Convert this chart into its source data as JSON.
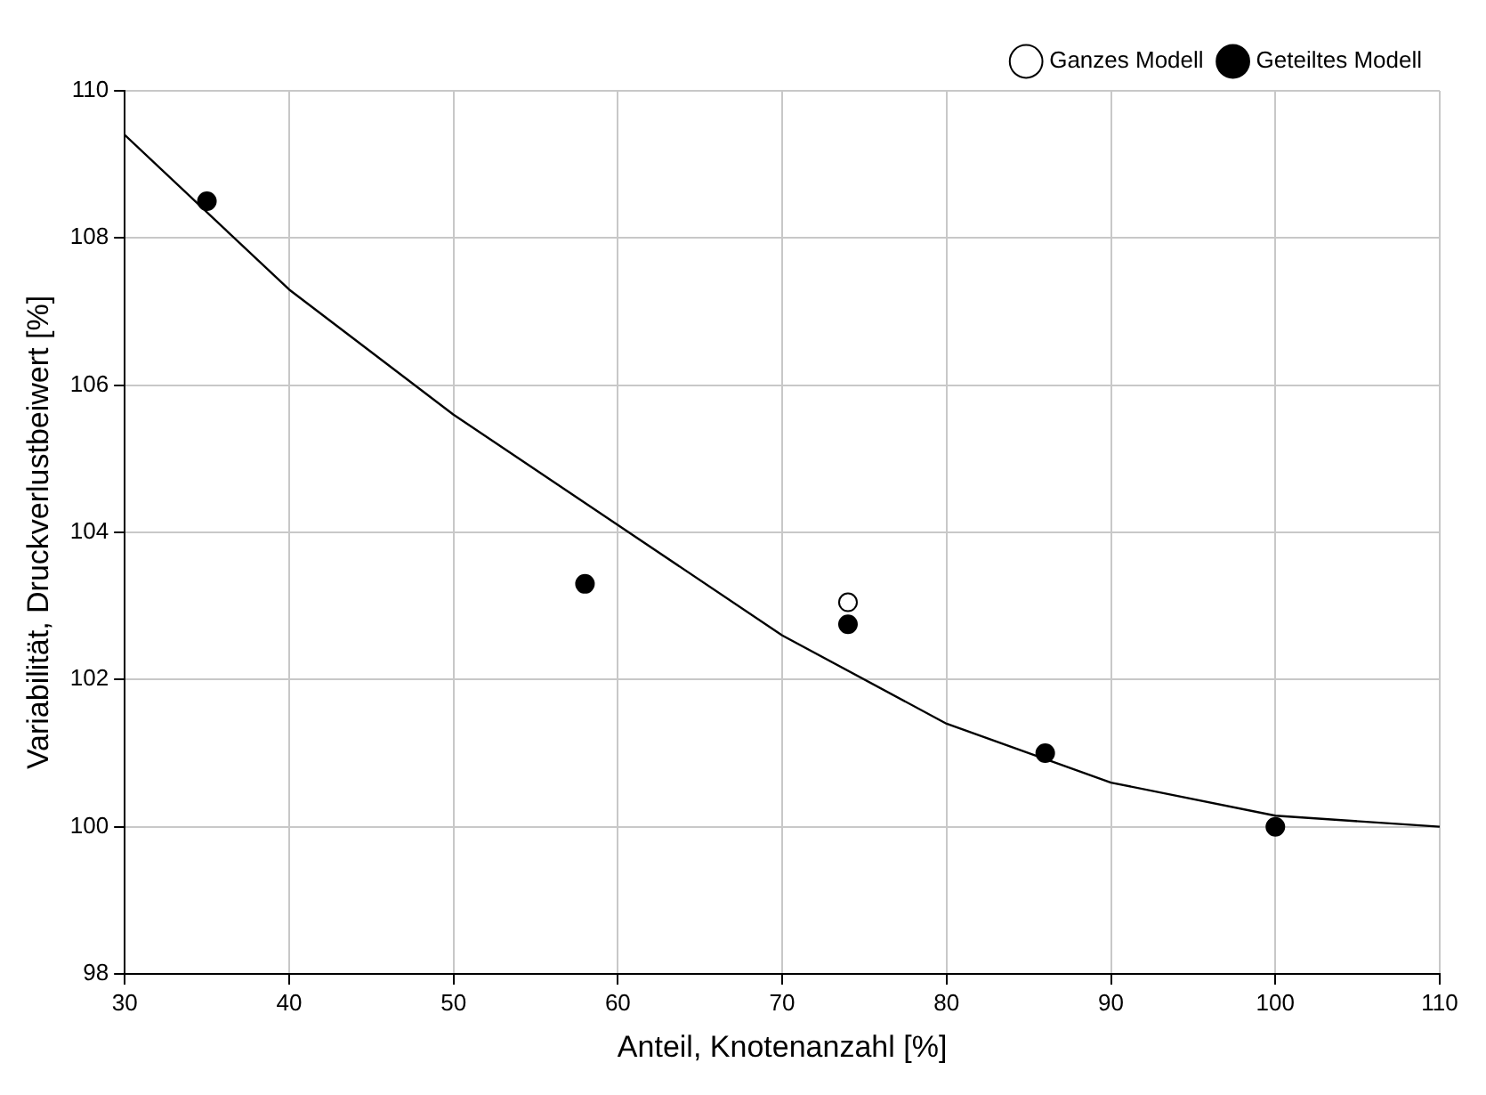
{
  "chart_data": {
    "type": "scatter",
    "xlabel": "Anteil, Knotenanzahl [%]",
    "ylabel": "Variabilität, Druckverlustbeiwert [%]",
    "xlim": [
      30,
      110
    ],
    "xticks": [
      30,
      40,
      50,
      60,
      70,
      80,
      90,
      100,
      110
    ],
    "ylim": [
      98,
      110
    ],
    "yticks": [
      98,
      100,
      102,
      104,
      106,
      108,
      110
    ],
    "grid": true,
    "legend": "top right",
    "marker": "circle",
    "series": [
      {
        "name": "Ganzes Modell",
        "color": "#ffffff",
        "x": [
          74
        ],
        "values": [
          103.05
        ]
      },
      {
        "name": "Geteiltes Modell",
        "color": "#000000",
        "x": [
          35,
          58,
          74,
          86,
          100
        ],
        "values": [
          108.5,
          103.3,
          102.75,
          101.0,
          100.0
        ]
      },
      {
        "type": "line",
        "color": "#000000",
        "marker": "none",
        "x": [
          30,
          40,
          50,
          60,
          70,
          80,
          90,
          100,
          110
        ],
        "values": [
          109.4,
          107.3,
          105.6,
          104.1,
          102.6,
          101.4,
          100.6,
          100.15,
          100.0
        ]
      }
    ]
  }
}
